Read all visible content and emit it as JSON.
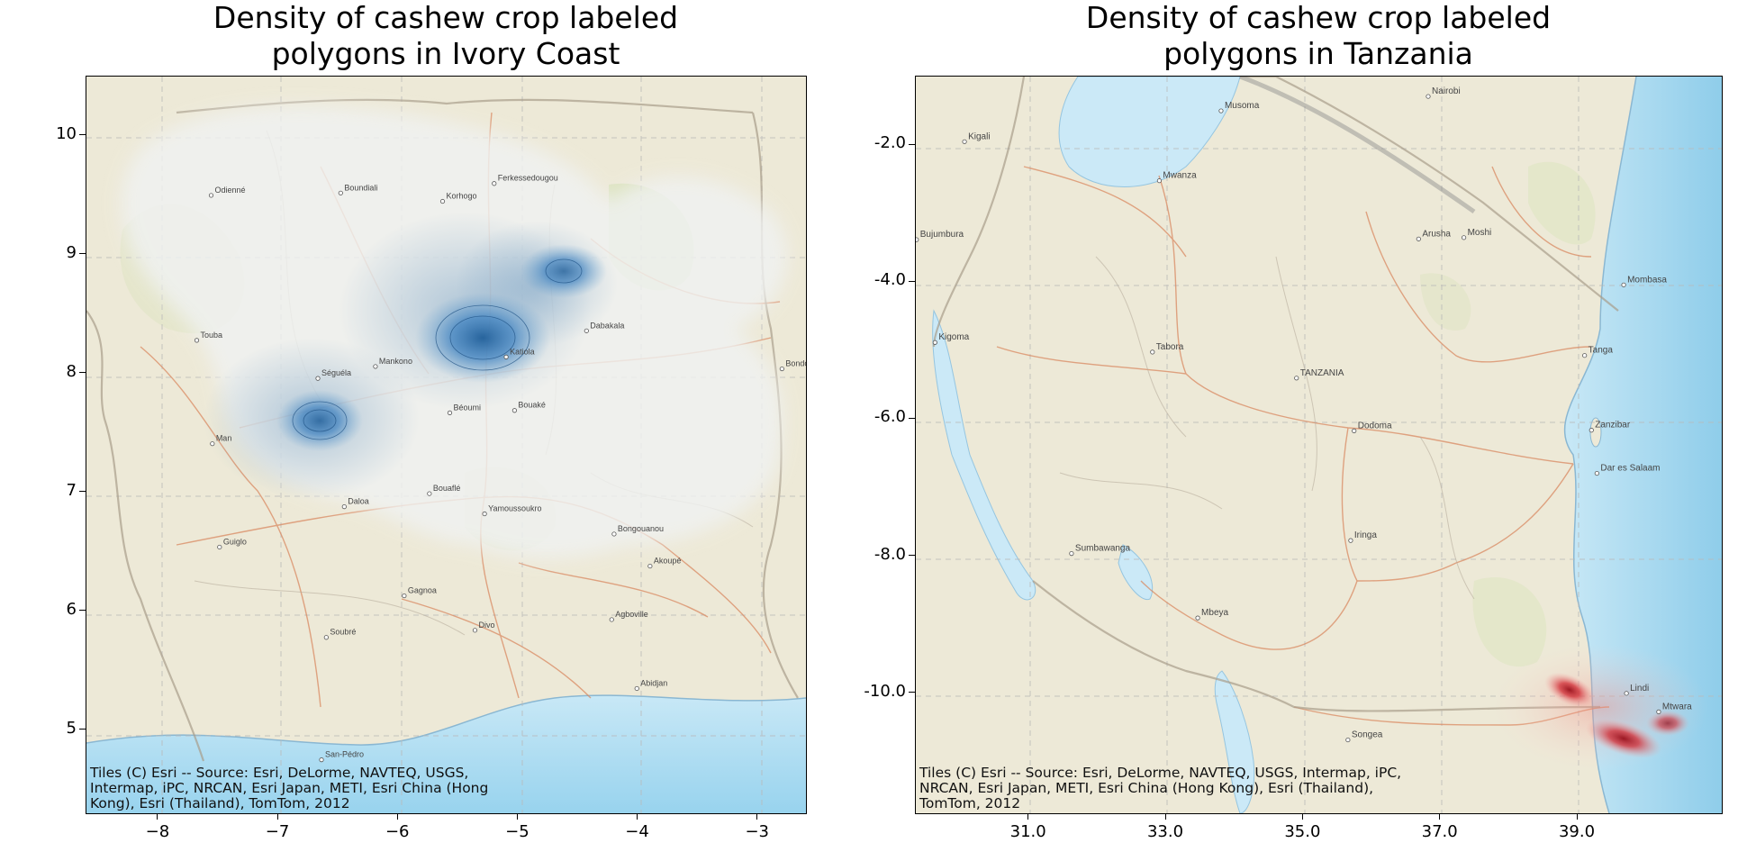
{
  "left_panel": {
    "title_line1": "Density of cashew crop labeled",
    "title_line2": "polygons in Ivory Coast",
    "attribution_lines": [
      "Tiles (C) Esri -- Source: Esri, DeLorme, NAVTEQ, USGS,",
      "Intermap, iPC, NRCAN, Esri Japan, METI, Esri China (Hong",
      "Kong), Esri (Thailand), TomTom, 2012"
    ],
    "x_ticks": [
      "−8",
      "−7",
      "−6",
      "−5",
      "−4",
      "−3"
    ],
    "y_ticks": [
      "10",
      "9",
      "8",
      "7",
      "6",
      "5"
    ],
    "density_color": "#3a78b0",
    "places": [
      {
        "name": "Korhogo",
        "lon": -5.63,
        "lat": 9.45
      },
      {
        "name": "Ferkessedougou",
        "lon": -5.2,
        "lat": 9.6
      },
      {
        "name": "Odienné",
        "lon": -7.56,
        "lat": 9.5
      },
      {
        "name": "Boundiali",
        "lon": -6.48,
        "lat": 9.52
      },
      {
        "name": "Touba",
        "lon": -7.68,
        "lat": 8.28
      },
      {
        "name": "Séguéla",
        "lon": -6.67,
        "lat": 7.96
      },
      {
        "name": "Katiola",
        "lon": -5.1,
        "lat": 8.14
      },
      {
        "name": "Bouaké",
        "lon": -5.03,
        "lat": 7.69
      },
      {
        "name": "Béoumi",
        "lon": -5.57,
        "lat": 7.67
      },
      {
        "name": "Man",
        "lon": -7.55,
        "lat": 7.41
      },
      {
        "name": "Bouaflé",
        "lon": -5.74,
        "lat": 6.99
      },
      {
        "name": "Yamoussoukro",
        "lon": -5.28,
        "lat": 6.82
      },
      {
        "name": "Daloa",
        "lon": -6.45,
        "lat": 6.88
      },
      {
        "name": "Guiglo",
        "lon": -7.49,
        "lat": 6.54
      },
      {
        "name": "Bongouanou",
        "lon": -4.2,
        "lat": 6.65
      },
      {
        "name": "Akoupé",
        "lon": -3.9,
        "lat": 6.38
      },
      {
        "name": "Gagnoa",
        "lon": -5.95,
        "lat": 6.13
      },
      {
        "name": "Soubré",
        "lon": -6.6,
        "lat": 5.78
      },
      {
        "name": "Divo",
        "lon": -5.36,
        "lat": 5.84
      },
      {
        "name": "Agboville",
        "lon": -4.22,
        "lat": 5.93
      },
      {
        "name": "Abidjan",
        "lon": -4.01,
        "lat": 5.35
      },
      {
        "name": "San-Pédro",
        "lon": -6.64,
        "lat": 4.75
      },
      {
        "name": "Bondoukou",
        "lon": -2.8,
        "lat": 8.04
      },
      {
        "name": "Mankono",
        "lon": -6.19,
        "lat": 8.06
      },
      {
        "name": "Dabakala",
        "lon": -4.43,
        "lat": 8.36
      }
    ]
  },
  "right_panel": {
    "title_line1": "Density of cashew crop labeled",
    "title_line2": "polygons in Tanzania",
    "attribution_lines": [
      "Tiles (C) Esri -- Source: Esri, DeLorme, NAVTEQ, USGS, Intermap, iPC,",
      "NRCAN, Esri Japan, METI, Esri China (Hong Kong), Esri (Thailand),",
      "TomTom, 2012"
    ],
    "x_ticks": [
      "31.0",
      "33.0",
      "35.0",
      "37.0",
      "39.0"
    ],
    "y_ticks": [
      "-2.0",
      "-4.0",
      "-6.0",
      "-8.0",
      "-10.0"
    ],
    "density_color": "#c0202a",
    "places": [
      {
        "name": "Nairobi",
        "lon": 36.82,
        "lat": -1.29
      },
      {
        "name": "Musoma",
        "lon": 33.8,
        "lat": -1.5
      },
      {
        "name": "Kigali",
        "lon": 30.06,
        "lat": -1.95
      },
      {
        "name": "Mwanza",
        "lon": 32.9,
        "lat": -2.52
      },
      {
        "name": "Bujumbura",
        "lon": 29.36,
        "lat": -3.38
      },
      {
        "name": "Arusha",
        "lon": 36.68,
        "lat": -3.37
      },
      {
        "name": "Moshi",
        "lon": 37.34,
        "lat": -3.35
      },
      {
        "name": "Mombasa",
        "lon": 39.67,
        "lat": -4.04
      },
      {
        "name": "Kigoma",
        "lon": 29.63,
        "lat": -4.88
      },
      {
        "name": "Tabora",
        "lon": 32.8,
        "lat": -5.02
      },
      {
        "name": "Tanga",
        "lon": 39.1,
        "lat": -5.07
      },
      {
        "name": "TANZANIA",
        "lon": 34.9,
        "lat": -5.4
      },
      {
        "name": "Dodoma",
        "lon": 35.74,
        "lat": -6.17
      },
      {
        "name": "Zanzibar",
        "lon": 39.2,
        "lat": -6.16
      },
      {
        "name": "Dar es Salaam",
        "lon": 39.28,
        "lat": -6.79
      },
      {
        "name": "Iringa",
        "lon": 35.69,
        "lat": -7.77
      },
      {
        "name": "Sumbawanga",
        "lon": 31.62,
        "lat": -7.96
      },
      {
        "name": "Mbeya",
        "lon": 33.46,
        "lat": -8.9
      },
      {
        "name": "Songea",
        "lon": 35.65,
        "lat": -10.68
      },
      {
        "name": "Lindi",
        "lon": 39.71,
        "lat": -10.0
      },
      {
        "name": "Mtwara",
        "lon": 40.18,
        "lat": -10.27
      }
    ]
  }
}
